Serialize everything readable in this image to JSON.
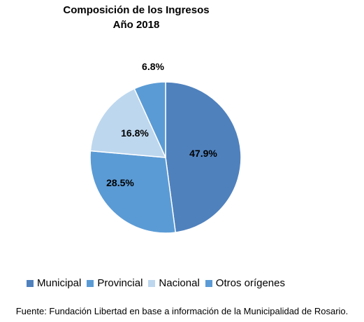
{
  "chart_data": {
    "type": "pie",
    "title": "Composición de los Ingresos",
    "subtitle": "Año 2018",
    "categories": [
      "Municipal",
      "Provincial",
      "Nacional",
      "Otros orígenes"
    ],
    "values": [
      47.9,
      28.5,
      16.8,
      6.8
    ],
    "value_labels": [
      "47.9%",
      "28.5%",
      "16.8%",
      "6.8%"
    ],
    "colors": [
      "#4f81bd",
      "#5b9bd5",
      "#bdd7ee",
      "#5b9bd5"
    ],
    "legend_position": "bottom"
  },
  "source": "Fuente: Fundación Libertad en base a información de la Municipalidad de Rosario."
}
